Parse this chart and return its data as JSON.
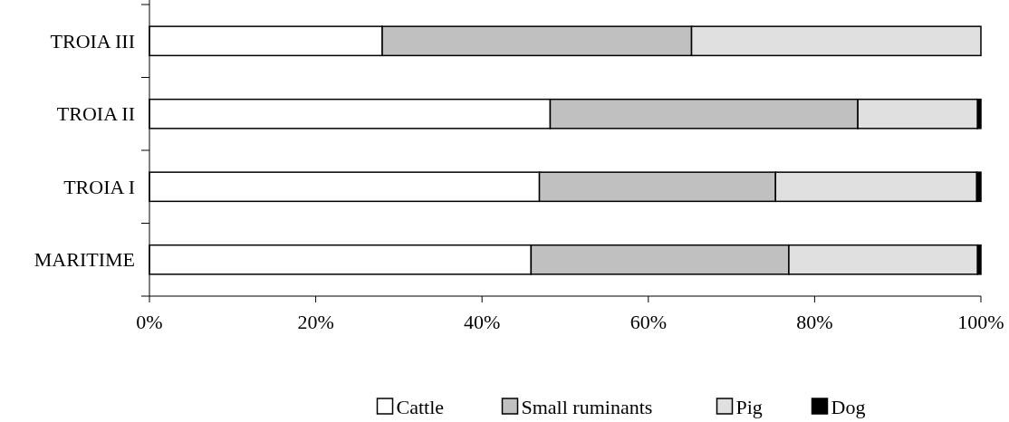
{
  "chart_data": {
    "type": "bar",
    "orientation": "horizontal",
    "stacked": true,
    "categories": [
      "TROIA III",
      "TROIA II",
      "TROIA I",
      "MARITIME"
    ],
    "series": [
      {
        "name": "Cattle",
        "color": "#ffffff",
        "values": [
          28,
          48.2,
          46.9,
          45.9
        ]
      },
      {
        "name": "Small ruminants",
        "color": "#c0c0c0",
        "values": [
          37.2,
          37,
          28.4,
          31
        ]
      },
      {
        "name": "Pig",
        "color": "#e0e0e0",
        "values": [
          34.8,
          14.4,
          24.2,
          22.7
        ]
      },
      {
        "name": "Dog",
        "color": "#000000",
        "values": [
          0,
          0.4,
          0.5,
          0.4
        ]
      }
    ],
    "xlim": [
      0,
      100
    ],
    "xticks": [
      {
        "value": 0,
        "label": "0%"
      },
      {
        "value": 20,
        "label": "20%"
      },
      {
        "value": 40,
        "label": "40%"
      },
      {
        "value": 60,
        "label": "60%"
      },
      {
        "value": 80,
        "label": "80%"
      },
      {
        "value": 100,
        "label": "100%"
      }
    ],
    "grid": false,
    "legend": "bottom"
  }
}
